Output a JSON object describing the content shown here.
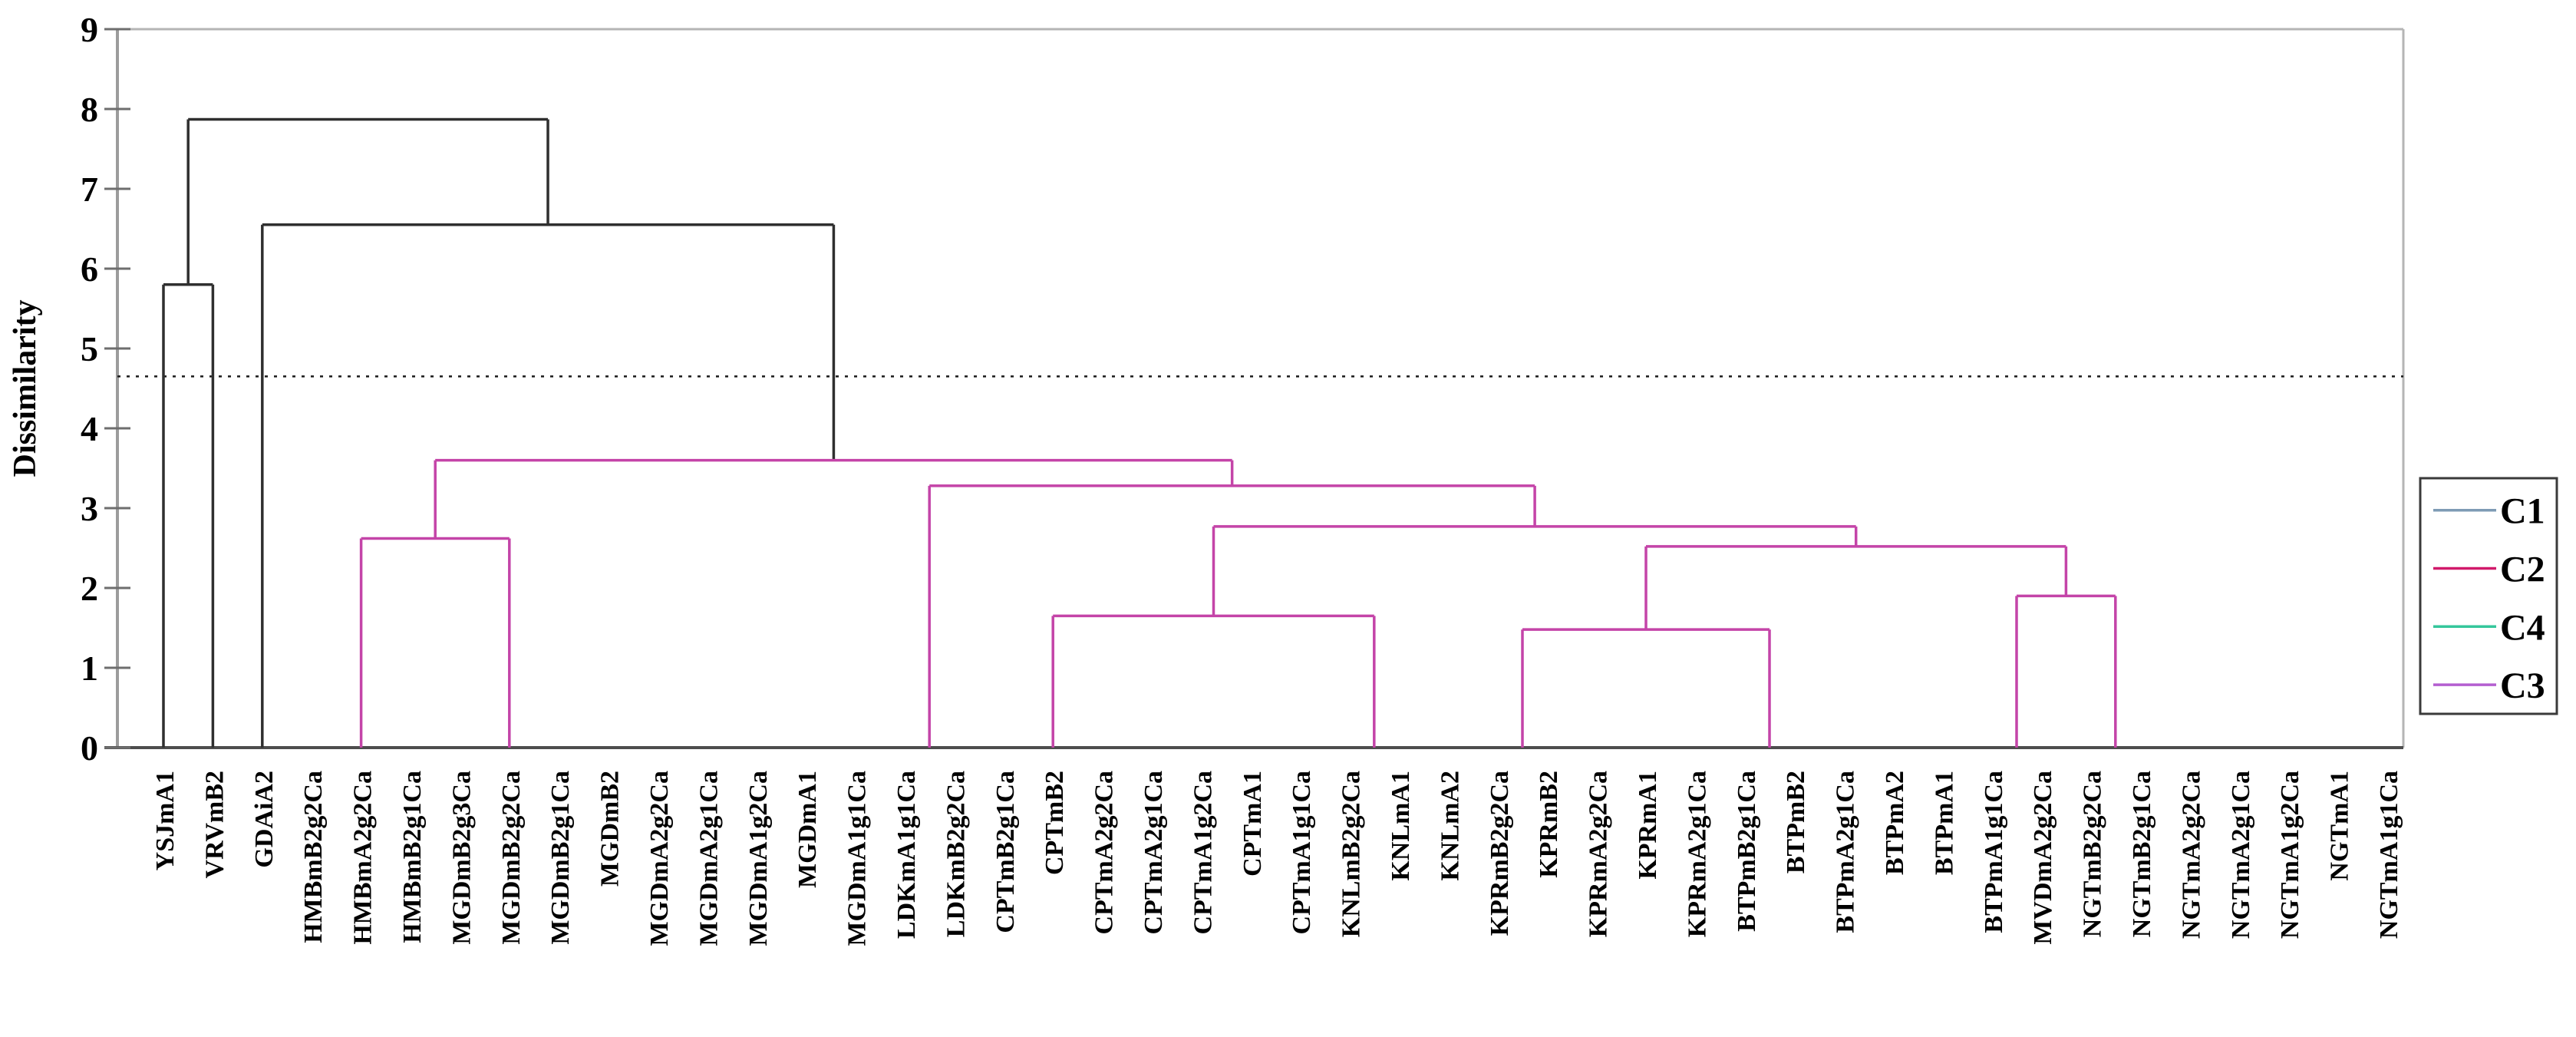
{
  "chart_data": {
    "type": "dendrogram",
    "title": "",
    "xlabel": "",
    "ylabel": "Dissimilarity",
    "ylim": [
      0,
      9
    ],
    "yticks": [
      0,
      1,
      2,
      3,
      4,
      5,
      6,
      7,
      8,
      9
    ],
    "grid": false,
    "cutoff_line_value": 4.65,
    "categories": [
      "YSJmA1",
      "VRVmB2",
      "GDAiA2",
      "HMBmB2g2Ca",
      "HMBmA2g2Ca",
      "HMBmB2g1Ca",
      "MGDmB2g3Ca",
      "MGDmB2g2Ca",
      "MGDmB2g1Ca",
      "MGDmB2",
      "MGDmA2g2Ca",
      "MGDmA2g1Ca",
      "MGDmA1g2Ca",
      "MGDmA1",
      "MGDmA1g1Ca",
      "LDKmA1g1Ca",
      "LDKmB2g2Ca",
      "CPTmB2g1Ca",
      "CPTmB2",
      "CPTmA2g2Ca",
      "CPTmA2g1Ca",
      "CPTmA1g2Ca",
      "CPTmA1",
      "CPTmA1g1Ca",
      "KNLmB2g2Ca",
      "KNLmA1",
      "KNLmA2",
      "KPRmB2g2Ca",
      "KPRmB2",
      "KPRmA2g2Ca",
      "KPRmA1",
      "KPRmA2g1Ca",
      "BTPmB2g1Ca",
      "BTPmB2",
      "BTPmA2g1Ca",
      "BTPmA2",
      "BTPmA1",
      "BTPmA1g1Ca",
      "MVDmA2g2Ca",
      "NGTmB2g2Ca",
      "NGTmB2g1Ca",
      "NGTmA2g2Ca",
      "NGTmA2g1Ca",
      "NGTmA1g2Ca",
      "NGTmA1",
      "NGTmA1g1Ca"
    ],
    "joins": [
      {
        "x1": 1,
        "x2": 2,
        "height": 5.8,
        "drop1": 0,
        "drop2": 0,
        "cluster": "upper"
      },
      {
        "x1": 1.5,
        "x2": 8.78,
        "height": 7.87,
        "drop1": 5.8,
        "drop2": 6.55,
        "cluster": "upper"
      },
      {
        "x1": 3,
        "x2": 14.5625,
        "height": 6.55,
        "drop1": 0,
        "drop2": 3.6,
        "cluster": "upper"
      },
      {
        "x1": 6.5,
        "x2": 22.625,
        "height": 3.6,
        "drop1": 2.62,
        "drop2": 3.28,
        "cluster": "C3"
      },
      {
        "x1": 5,
        "x2": 8,
        "height": 2.62,
        "drop1": 0,
        "drop2": 0,
        "cluster": "C3"
      },
      {
        "x1": 16.5,
        "x2": 28.75,
        "height": 3.28,
        "drop1": 0,
        "drop2": 2.77,
        "cluster": "C3"
      },
      {
        "x1": 22.25,
        "x2": 35.25,
        "height": 2.77,
        "drop1": 1.65,
        "drop2": 2.52,
        "cluster": "C3"
      },
      {
        "x1": 19,
        "x2": 25.5,
        "height": 1.65,
        "drop1": 0,
        "drop2": 0,
        "cluster": "C3"
      },
      {
        "x1": 31,
        "x2": 39.5,
        "height": 2.52,
        "drop1": 1.48,
        "drop2": 1.9,
        "cluster": "C3"
      },
      {
        "x1": 28.5,
        "x2": 33.5,
        "height": 1.48,
        "drop1": 0,
        "drop2": 0,
        "cluster": "C3"
      },
      {
        "x1": 38.5,
        "x2": 40.5,
        "height": 1.9,
        "drop1": 0,
        "drop2": 0,
        "cluster": "C3"
      }
    ],
    "legend": {
      "position": "right",
      "items": [
        {
          "label": "C1",
          "color": "#7E9BB5"
        },
        {
          "label": "C2",
          "color": "#D11A6B"
        },
        {
          "label": "C4",
          "color": "#35C79B"
        },
        {
          "label": "C3",
          "color": "#B45FD0"
        }
      ]
    },
    "colors": {
      "upper": "#2F2F2F",
      "C3": "#C444A8",
      "cutoff_line": "#1a1a1a",
      "axis_left": "#9C9C9C",
      "axis_bottom": "#4D4D4D",
      "border_top": "#B5B5B5",
      "border_right": "#B5B5B5",
      "tick": "#6E6E6E"
    }
  }
}
